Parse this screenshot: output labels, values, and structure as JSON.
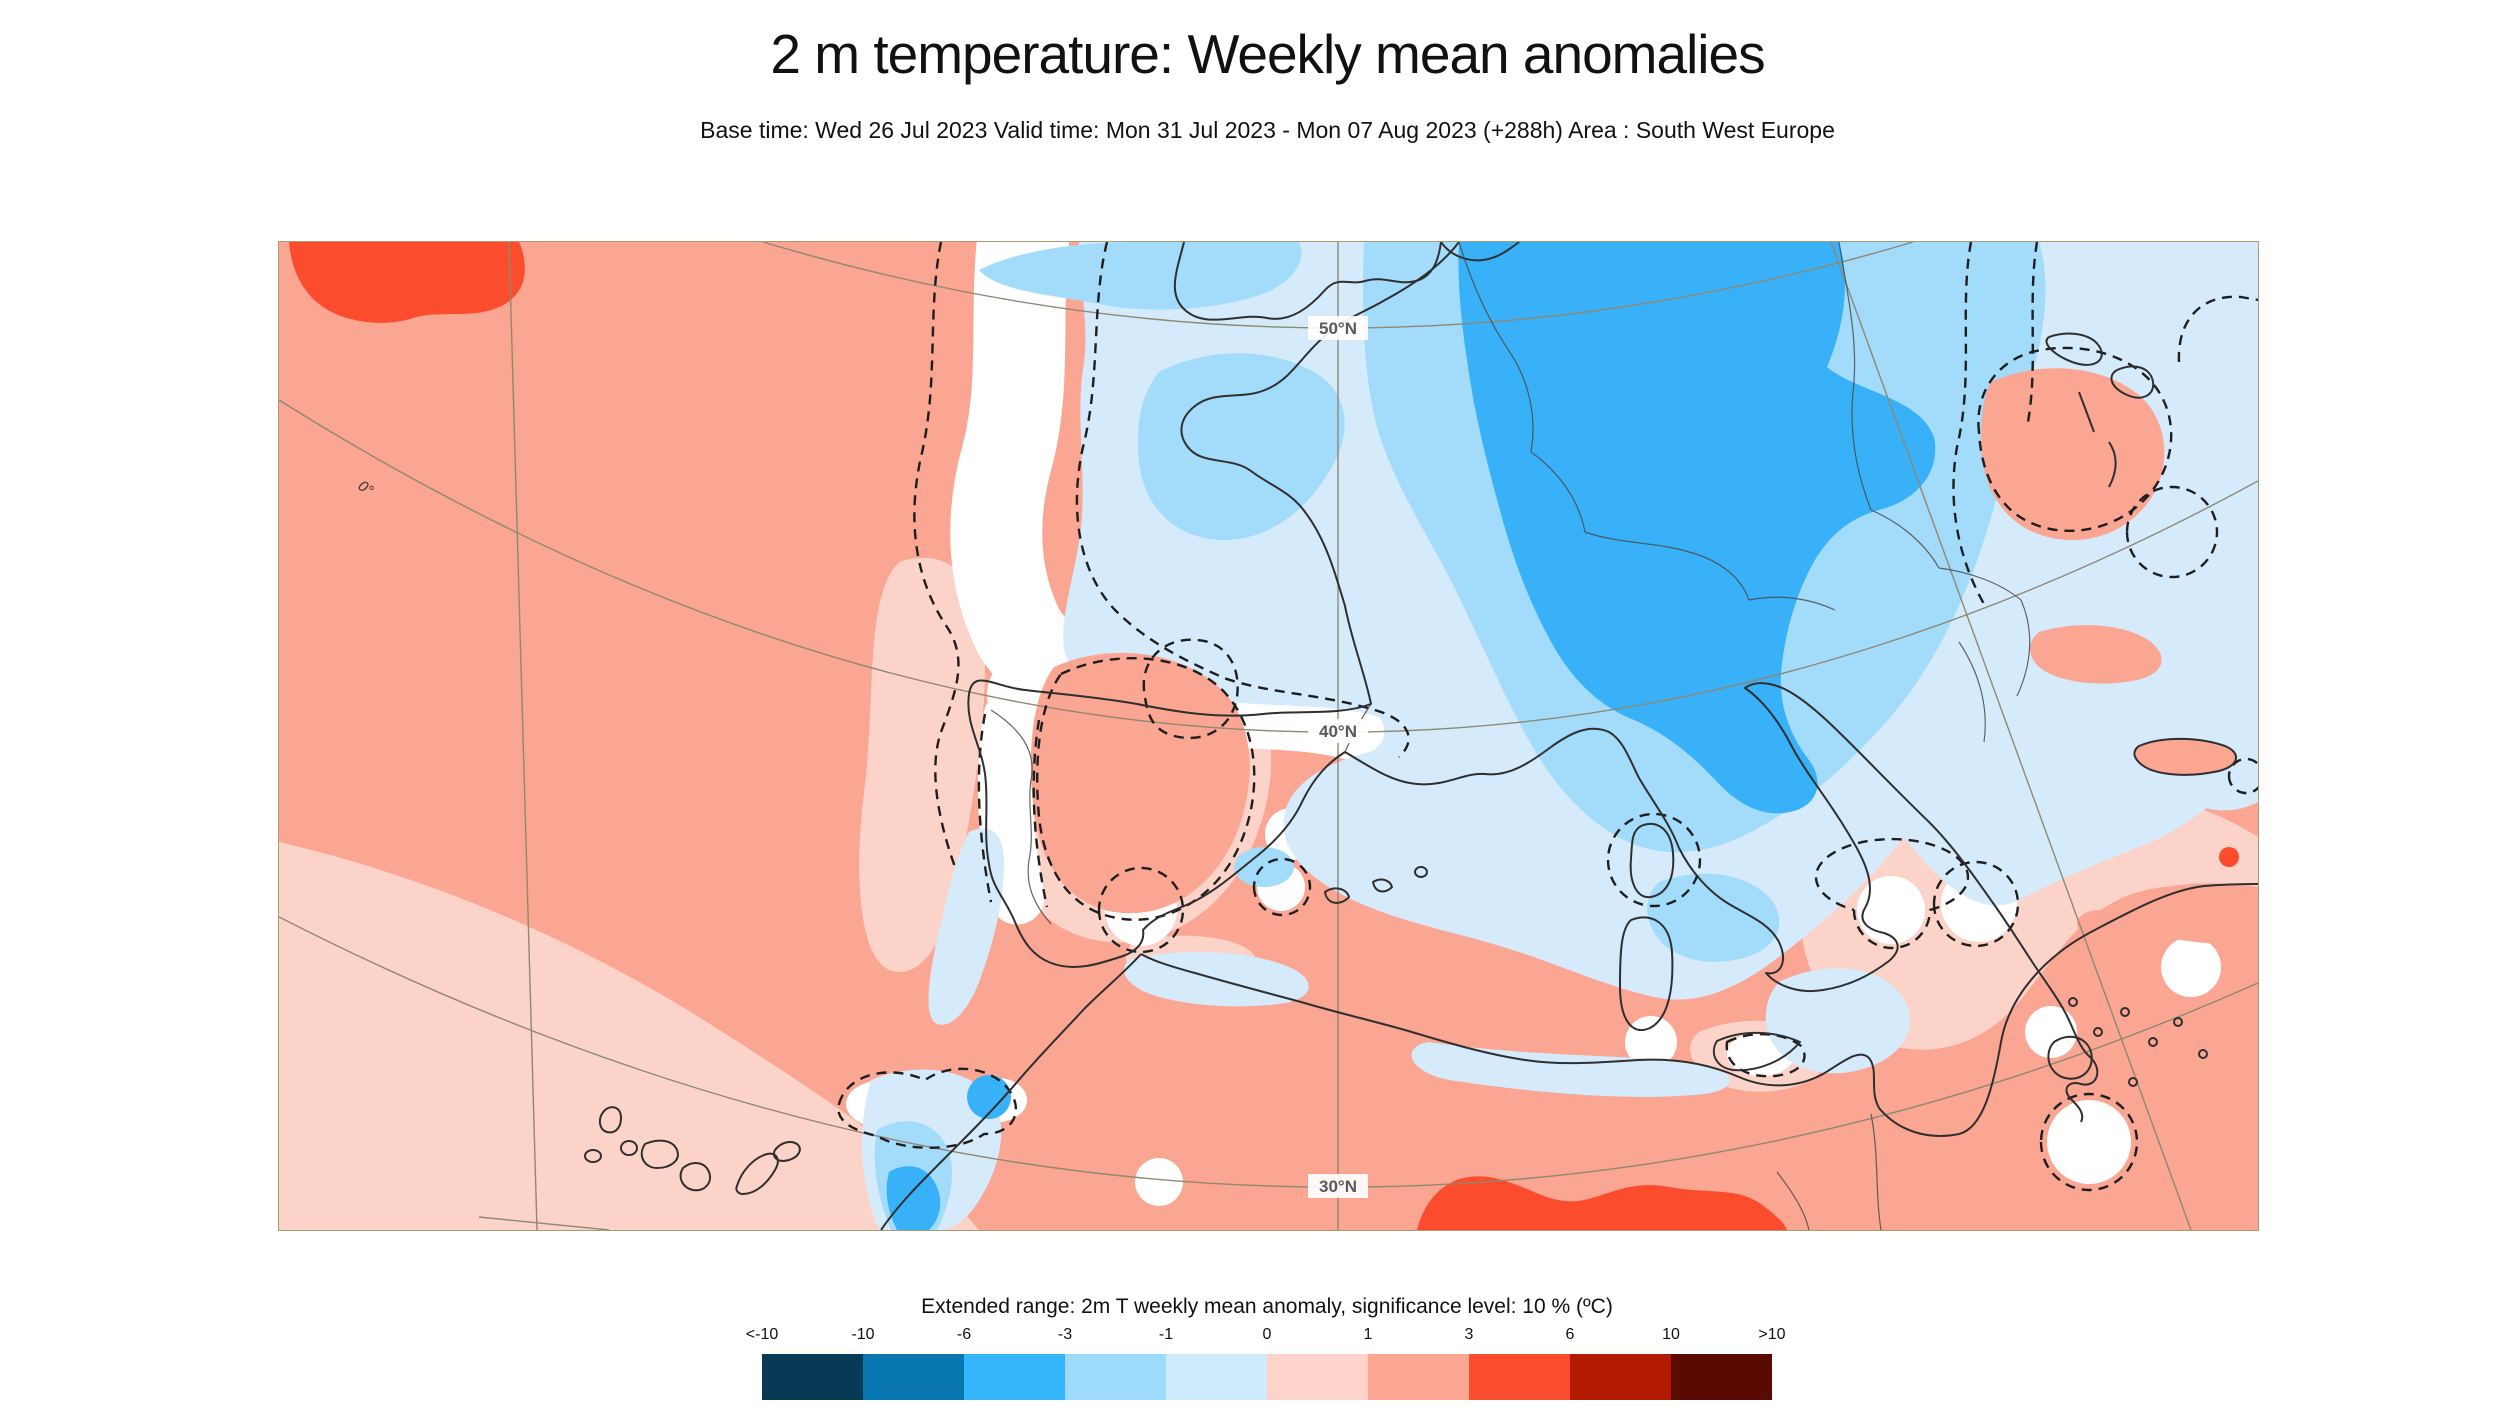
{
  "header": {
    "title": "2 m temperature: Weekly mean anomalies",
    "subtitle": "Base time: Wed 26 Jul 2023 Valid time: Mon 31 Jul 2023 - Mon 07 Aug 2023 (+288h) Area : South West Europe"
  },
  "map": {
    "area": "South West Europe",
    "latitude_labels": [
      "50°N",
      "40°N",
      "30°N"
    ],
    "meridian_label": "0°",
    "palette": {
      "anomaly_plus_1_3": "#fba593",
      "anomaly_0_1": "#fcd3c9",
      "not_significant_white": "#ffffff",
      "anomaly_minus1_0": "#d5ebfc",
      "anomaly_minus3_minus1": "#a3dbfb",
      "anomaly_minus6_minus3": "#38b1f8",
      "anomaly_3_6": "#fb4c2d",
      "coastline": "#2f2f2f",
      "graticule": "#8f8872",
      "significance_contour": "#1e1e1e",
      "frame": "#a89b72"
    }
  },
  "legend": {
    "title": "Extended range: 2m T weekly mean anomaly, significance level: 10 % (ºC)",
    "ticks": [
      "<-10",
      "-10",
      "-6",
      "-3",
      "-1",
      "0",
      "1",
      "3",
      "6",
      "10",
      ">10"
    ],
    "colors": [
      "#063a55",
      "#0877b1",
      "#35b5fb",
      "#9cdbfc",
      "#cfeafd",
      "#ffd3ca",
      "#fda694",
      "#fc4e2f",
      "#b21b02",
      "#5a0b01"
    ]
  }
}
